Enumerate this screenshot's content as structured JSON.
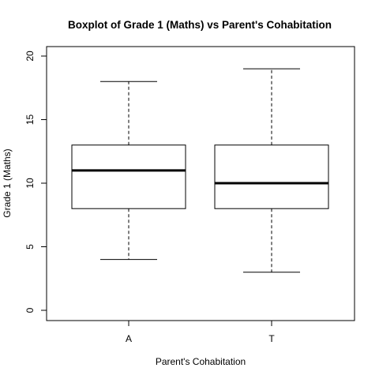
{
  "chart_data": {
    "type": "boxplot",
    "title": "Boxplot of Grade 1 (Maths)  vs  Parent's Cohabitation",
    "xlabel": "Parent's Cohabitation",
    "ylabel": "Grade 1 (Maths)",
    "ylim": [
      0,
      20
    ],
    "yticks": [
      "0",
      "5",
      "10",
      "15",
      "20"
    ],
    "categories": [
      "A",
      "T"
    ],
    "series": [
      {
        "category": "A",
        "whisker_low": 4,
        "q1": 8,
        "median": 11,
        "q3": 13,
        "whisker_high": 18
      },
      {
        "category": "T",
        "whisker_low": 3,
        "q1": 8,
        "median": 10,
        "q3": 13,
        "whisker_high": 19
      }
    ],
    "grid": false,
    "legend": "none"
  }
}
